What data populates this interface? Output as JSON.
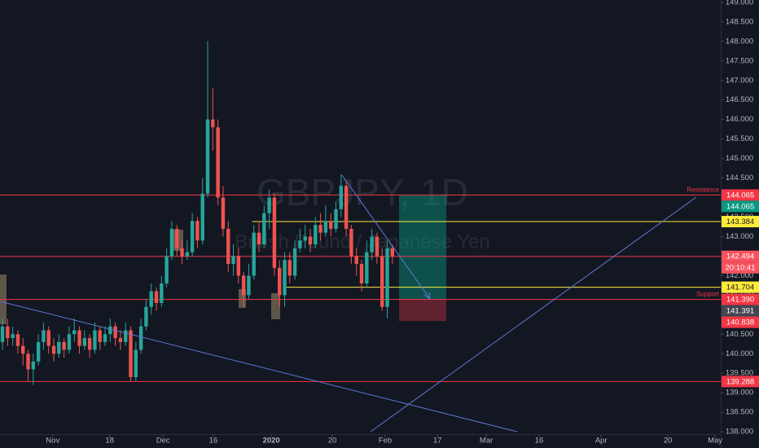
{
  "chart_data": {
    "type": "candlestick",
    "watermark_symbol": "GBPJPY, 1D",
    "watermark_name": "British Pound / Japanese Yen",
    "up_color": "#26a69a",
    "down_color": "#ef5350",
    "x": [
      0,
      1,
      2,
      3,
      4,
      5,
      6,
      7,
      8,
      9,
      10,
      11,
      12,
      13,
      14,
      15,
      16,
      17,
      18,
      19,
      20,
      21,
      22,
      23,
      24,
      25,
      26,
      27,
      28,
      29,
      30,
      31,
      32,
      33,
      34,
      35,
      36,
      37,
      38,
      39,
      40,
      41,
      42,
      43,
      44,
      45,
      46,
      47,
      48,
      49,
      50,
      51,
      52,
      53,
      54,
      55,
      56,
      57,
      58,
      59,
      60,
      61,
      62,
      63,
      64,
      65,
      66,
      67,
      68,
      69,
      70,
      71,
      72,
      73,
      74,
      75,
      76
    ],
    "open": [
      140.3,
      140.7,
      140.4,
      140.5,
      140.2,
      140.0,
      139.6,
      139.8,
      140.3,
      140.6,
      140.2,
      140.0,
      140.3,
      140.1,
      140.5,
      140.6,
      140.2,
      140.4,
      140.1,
      140.6,
      140.3,
      140.5,
      140.7,
      140.4,
      140.3,
      140.6,
      139.4,
      140.1,
      140.7,
      141.2,
      141.6,
      141.3,
      141.8,
      142.5,
      143.2,
      142.7,
      142.5,
      142.6,
      143.4,
      142.9,
      144.1,
      146.0,
      145.8,
      144.0,
      143.2,
      142.3,
      142.5,
      142.0,
      141.5,
      142.0,
      143.1,
      142.8,
      143.6,
      144.0,
      142.2,
      141.5,
      142.4,
      142.0,
      142.7,
      142.9,
      143.0,
      142.8,
      143.3,
      143.1,
      143.4,
      143.2,
      143.7,
      144.3,
      143.2,
      142.5,
      142.3,
      141.8,
      142.6,
      143.0,
      142.5,
      141.2,
      142.7
    ],
    "high": [
      140.9,
      140.9,
      140.7,
      140.6,
      140.4,
      140.1,
      140.0,
      140.5,
      140.8,
      140.7,
      140.4,
      140.5,
      140.4,
      140.7,
      140.9,
      140.7,
      140.6,
      140.5,
      140.8,
      140.7,
      140.7,
      140.9,
      140.8,
      140.6,
      140.8,
      140.7,
      140.3,
      140.9,
      141.4,
      141.8,
      141.7,
      142.0,
      142.7,
      143.4,
      143.3,
      142.9,
      142.9,
      143.6,
      143.5,
      144.5,
      148.0,
      146.8,
      146.0,
      144.3,
      143.4,
      142.8,
      142.7,
      142.1,
      142.3,
      143.3,
      143.4,
      143.8,
      144.2,
      144.1,
      142.4,
      142.6,
      142.6,
      142.9,
      143.2,
      143.3,
      143.2,
      143.5,
      143.6,
      143.8,
      143.6,
      143.9,
      144.6,
      144.4,
      143.3,
      142.7,
      142.4,
      142.9,
      143.2,
      143.1,
      142.7,
      142.9,
      142.8
    ],
    "low": [
      140.1,
      140.2,
      140.2,
      140.0,
      139.7,
      139.3,
      139.2,
      139.7,
      140.1,
      140.0,
      139.8,
      139.9,
      139.9,
      140.0,
      140.3,
      140.0,
      140.1,
      139.9,
      140.0,
      140.1,
      140.2,
      140.3,
      140.2,
      140.1,
      140.2,
      139.3,
      139.3,
      140.0,
      140.6,
      141.0,
      141.1,
      141.2,
      141.7,
      142.4,
      142.5,
      142.3,
      142.4,
      142.5,
      142.7,
      142.8,
      144.0,
      145.2,
      143.8,
      143.0,
      142.1,
      142.0,
      141.8,
      141.2,
      141.4,
      141.9,
      142.6,
      142.7,
      143.2,
      142.0,
      141.2,
      141.2,
      141.8,
      141.9,
      142.6,
      142.7,
      142.6,
      142.7,
      142.9,
      143.0,
      143.0,
      143.1,
      143.5,
      143.0,
      142.3,
      142.0,
      141.6,
      141.7,
      142.4,
      142.3,
      141.1,
      140.9,
      142.3
    ],
    "close": [
      140.7,
      140.4,
      140.5,
      140.2,
      140.0,
      139.6,
      139.8,
      140.3,
      140.6,
      140.2,
      140.0,
      140.3,
      140.1,
      140.5,
      140.6,
      140.2,
      140.4,
      140.1,
      140.6,
      140.3,
      140.5,
      140.7,
      140.4,
      140.3,
      140.6,
      139.4,
      140.1,
      140.7,
      141.2,
      141.6,
      141.3,
      141.8,
      142.5,
      143.2,
      142.7,
      142.5,
      142.6,
      143.4,
      142.9,
      144.1,
      146.0,
      145.8,
      144.0,
      143.2,
      142.3,
      142.5,
      142.0,
      141.5,
      142.0,
      143.1,
      142.8,
      143.6,
      144.0,
      142.2,
      141.5,
      142.4,
      142.0,
      142.7,
      142.9,
      143.0,
      142.8,
      143.3,
      143.1,
      143.4,
      143.2,
      143.7,
      144.3,
      143.2,
      142.5,
      142.3,
      141.8,
      142.6,
      143.0,
      142.5,
      141.2,
      142.7,
      142.5
    ],
    "xlim": [
      -0.48,
      140
    ],
    "xticks": [
      {
        "value": 9.8,
        "label": "Nov"
      },
      {
        "value": 20.9,
        "label": "18"
      },
      {
        "value": 31.3,
        "label": "Dec"
      },
      {
        "value": 41.1,
        "label": "16"
      },
      {
        "value": 52.4,
        "label": "2020"
      },
      {
        "value": 64.3,
        "label": "20"
      },
      {
        "value": 74.6,
        "label": "Feb"
      },
      {
        "value": 84.8,
        "label": "17"
      },
      {
        "value": 94.3,
        "label": "Mar"
      },
      {
        "value": 104.6,
        "label": "16"
      },
      {
        "value": 116.7,
        "label": "Apr"
      },
      {
        "value": 129.7,
        "label": "20"
      },
      {
        "value": 138.9,
        "label": "May"
      }
    ],
    "ylim": [
      137.94,
      149.06
    ],
    "yticks": [
      {
        "value": 138,
        "label": "138.000"
      },
      {
        "value": 138.5,
        "label": "138.500"
      },
      {
        "value": 139,
        "label": "139.000"
      },
      {
        "value": 139.5,
        "label": "139.500"
      },
      {
        "value": 140,
        "label": "140.000"
      },
      {
        "value": 140.5,
        "label": "140.500"
      },
      {
        "value": 141,
        "label": "141.000"
      },
      {
        "value": 141.5,
        "label": "141.500"
      },
      {
        "value": 142,
        "label": "142.000"
      },
      {
        "value": 142.5,
        "label": "142.500"
      },
      {
        "value": 143,
        "label": "143.000"
      },
      {
        "value": 143.5,
        "label": "143.500"
      },
      {
        "value": 144,
        "label": "144.000"
      },
      {
        "value": 144.5,
        "label": "144.500"
      },
      {
        "value": 145,
        "label": "145.000"
      },
      {
        "value": 145.5,
        "label": "145.500"
      },
      {
        "value": 146,
        "label": "146.000"
      },
      {
        "value": 146.5,
        "label": "146.500"
      },
      {
        "value": 147,
        "label": "147.000"
      },
      {
        "value": 147.5,
        "label": "147.500"
      },
      {
        "value": 148,
        "label": "148.000"
      },
      {
        "value": 148.5,
        "label": "148.500"
      },
      {
        "value": 149,
        "label": "149.000"
      }
    ],
    "levels": [
      {
        "value": 144.065,
        "color": "#f23645",
        "name": "Resistance",
        "from": -0.48
      },
      {
        "value": 142.494,
        "color": "#f23645",
        "from": -0.48
      },
      {
        "value": 141.39,
        "color": "#f23645",
        "name": "Support",
        "from": -0.48
      },
      {
        "value": 139.288,
        "color": "#f23645",
        "from": -0.48
      },
      {
        "value": 143.384,
        "color": "#ffeb3b",
        "from": 48.7
      },
      {
        "value": 141.704,
        "color": "#ffeb3b",
        "from": 55
      }
    ],
    "price_tags": [
      {
        "value": 144.065,
        "color": "#f23645"
      },
      {
        "value": 144.065,
        "color": "#089981"
      },
      {
        "value": 143.384,
        "color": "#ffeb3b"
      },
      {
        "value": 142.494,
        "color": "#f7525f"
      },
      {
        "value": 141.704,
        "color": "#ffeb3b"
      },
      {
        "value": 141.39,
        "label": "141.390",
        "color": "#f23645"
      },
      {
        "value": 141.391,
        "color": "#434651"
      },
      {
        "value": 140.838,
        "color": "#f23645"
      },
      {
        "value": 139.288,
        "color": "#f23645"
      }
    ],
    "countdown": "20:10:41"
  }
}
